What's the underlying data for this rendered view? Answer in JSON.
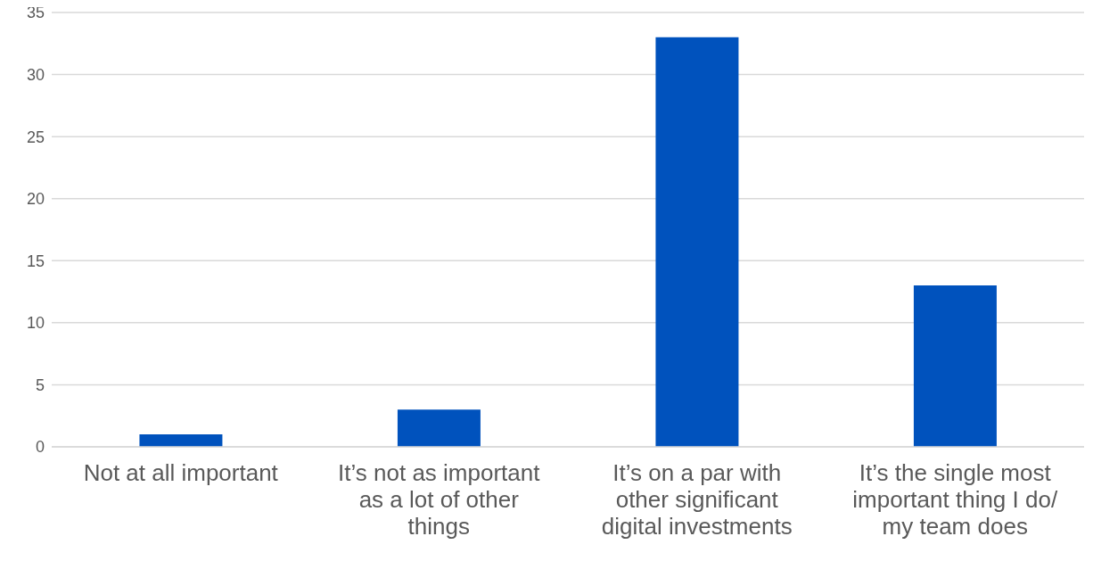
{
  "chart_data": {
    "type": "bar",
    "categories": [
      "Not at all important",
      "It’s not as important as a lot of other things",
      "It’s on a par with other significant digital investments",
      "It’s the single most important thing I do/ my team does"
    ],
    "values": [
      1,
      3,
      33,
      13
    ],
    "color": "#0052bd",
    "ylim": [
      0,
      35
    ],
    "yticks": [
      0,
      5,
      10,
      15,
      20,
      25,
      30,
      35
    ],
    "grid": "y",
    "legend": false
  }
}
